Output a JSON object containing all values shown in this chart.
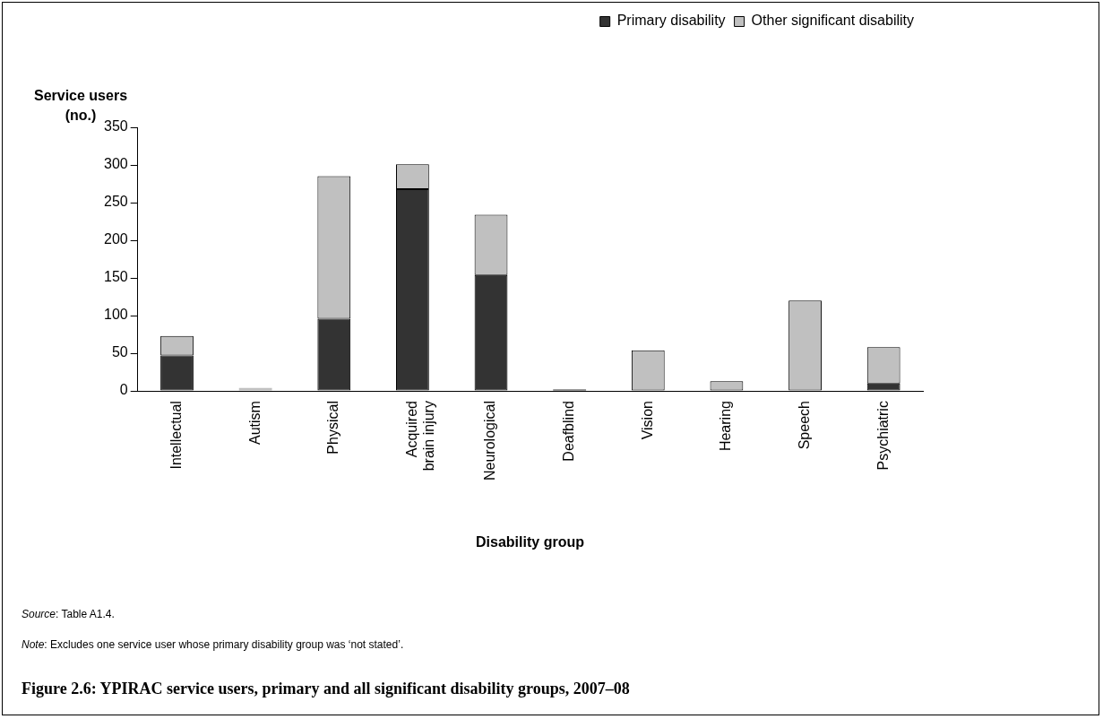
{
  "chart_data": {
    "type": "bar",
    "stacked": true,
    "title": "Figure 2.6: YPIRAC service users, primary and all significant disability groups, 2007–08",
    "xlabel": "Disability group",
    "ylabel": "Service users (no.)",
    "categories": [
      "Intellectual",
      "Autism",
      "Physical",
      "Acquired brain injury",
      "Neurological",
      "Deafblind",
      "Vision",
      "Hearing",
      "Speech",
      "Psychiatric"
    ],
    "series": [
      {
        "name": "Primary disability",
        "color": "#333333",
        "values": [
          47,
          0,
          96,
          268,
          154,
          2,
          0,
          0,
          0,
          10
        ]
      },
      {
        "name": "Other significant disability",
        "color": "#c0c0c0",
        "values": [
          26,
          4,
          189,
          33,
          80,
          0,
          54,
          13,
          120,
          48
        ]
      }
    ],
    "ylim": [
      0,
      350
    ],
    "yticks": [
      0,
      50,
      100,
      150,
      200,
      250,
      300,
      350
    ],
    "grid": false,
    "legend": "top right",
    "annotations": [
      "Source: Table A1.4.",
      "Note: Excludes one service user whose primary disability group was ‘not stated’."
    ]
  }
}
